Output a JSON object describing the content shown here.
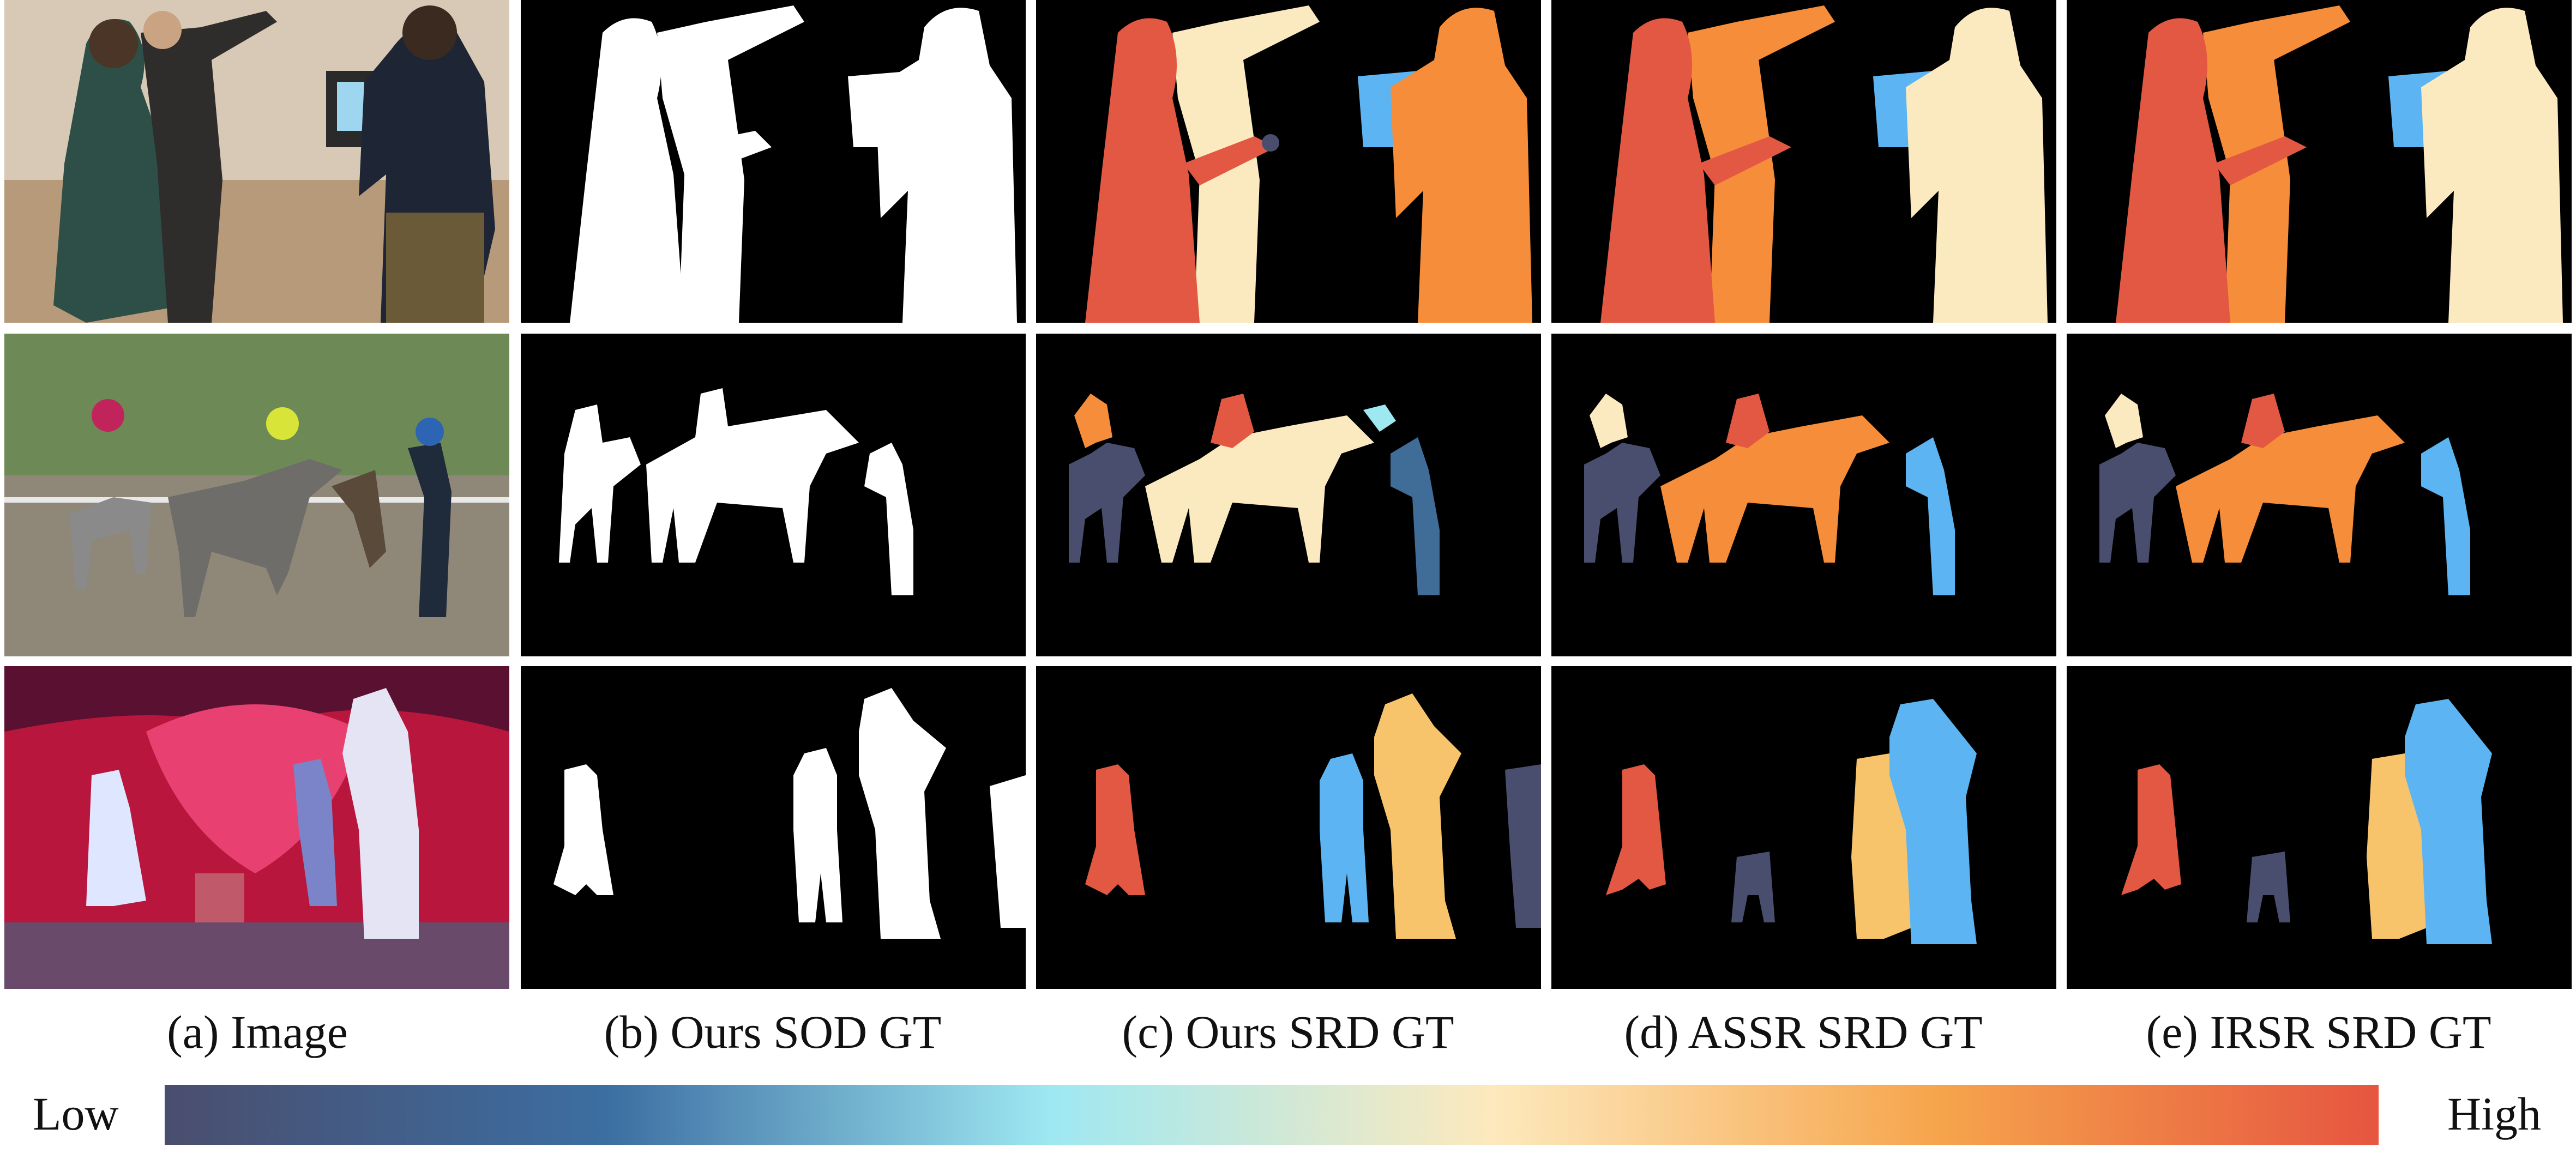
{
  "captions": {
    "a": "(a) Image",
    "b": "(b) Ours SOD GT",
    "c": "(c) Ours SRD GT",
    "d": "(d) ASSR SRD GT",
    "e": "(e) IRSR SRD GT"
  },
  "scale": {
    "low_label": "Low",
    "high_label": "High",
    "colors": [
      "#4a4e6e",
      "#3c6ea2",
      "#9ee8f2",
      "#fde9bd",
      "#f6a54c",
      "#e65540"
    ]
  },
  "rank_colors": {
    "white": "#ffffff",
    "slate": "#4a4e6e",
    "steel": "#3f6d98",
    "sky": "#5cb5f2",
    "cream": "#fbe9bf",
    "sand": "#f7c46c",
    "orange": "#f68d3a",
    "red": "#e25842",
    "background": "#000000"
  },
  "rows": [
    {
      "scene": "living-room",
      "images": [
        "room-photo",
        "sod-mask",
        "ours-srd",
        "assr-srd",
        "irsr-srd"
      ]
    },
    {
      "scene": "horse-race",
      "images": [
        "track-photo",
        "sod-mask",
        "ours-srd",
        "assr-srd",
        "irsr-srd"
      ]
    },
    {
      "scene": "stage",
      "images": [
        "stage-photo",
        "sod-mask",
        "ours-srd",
        "assr-srd",
        "irsr-srd"
      ]
    }
  ]
}
